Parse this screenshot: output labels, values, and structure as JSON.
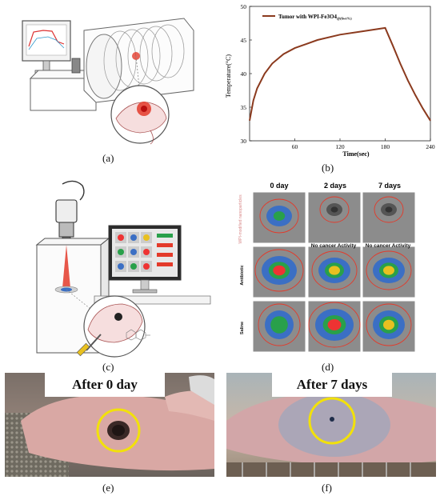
{
  "figure": {
    "captions": [
      "(a)",
      "(b)",
      "(c)",
      "(d)",
      "(e)",
      "(f)"
    ]
  },
  "panel_b": {
    "chart_data": {
      "type": "line",
      "ylabel": "Temperature(°C)",
      "xlabel": "Time(sec)",
      "xlim": [
        0,
        240
      ],
      "ylim": [
        30,
        50
      ],
      "x_ticks": [
        "60",
        "120",
        "180",
        "240"
      ],
      "y_ticks": [
        "30",
        "35",
        "40",
        "45",
        "50"
      ],
      "legend": "Tumor with WPI-Fe3O4",
      "legend_subscript": "@(6wt%)",
      "series": [
        {
          "name": "Tumor with WPI-Fe3O4@(6wt%)",
          "color": "#8b3a1e",
          "x": [
            0,
            5,
            10,
            20,
            30,
            45,
            60,
            90,
            120,
            150,
            180,
            185,
            190,
            200,
            210,
            220,
            230,
            240
          ],
          "y": [
            33,
            36,
            37.8,
            40,
            41.5,
            42.9,
            43.8,
            45,
            45.8,
            46.3,
            46.8,
            45.5,
            44.2,
            41.5,
            39,
            36.8,
            34.8,
            33
          ]
        }
      ]
    }
  },
  "panel_d": {
    "columns": [
      "0 day",
      "2 days",
      "7 days"
    ],
    "rows": [
      "WPI-modified nanoparticles",
      "Antibiotic",
      "Saline"
    ],
    "note": "No cancer Activity"
  },
  "panel_e": {
    "title": "After 0 day"
  },
  "panel_f": {
    "title": "After 7 days"
  },
  "colors": {
    "curve": "#8b3a1e",
    "ring": "#f2e10a",
    "laser": "#e33a2a"
  }
}
